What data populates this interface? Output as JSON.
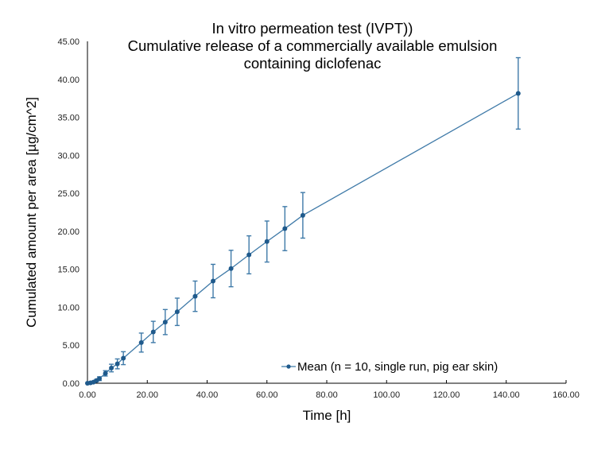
{
  "chart_data": {
    "type": "line",
    "title": [
      "In vitro permeation test (IVPT))",
      "Cumulative release of a commercially available emulsion",
      "containing diclofenac"
    ],
    "xlabel": "Time [h]",
    "ylabel": "Cumulated amount per area [µg/cm^2]",
    "xlim": [
      0,
      160
    ],
    "ylim": [
      0,
      45
    ],
    "x_ticks": [
      "0.00",
      "20.00",
      "40.00",
      "60.00",
      "80.00",
      "100.00",
      "120.00",
      "140.00",
      "160.00"
    ],
    "x_tick_values": [
      0,
      20,
      40,
      60,
      80,
      100,
      120,
      140,
      160
    ],
    "y_ticks": [
      "0.00",
      "5.00",
      "10.00",
      "15.00",
      "20.00",
      "25.00",
      "30.00",
      "35.00",
      "40.00",
      "45.00"
    ],
    "y_tick_values": [
      0,
      5,
      10,
      15,
      20,
      25,
      30,
      35,
      40,
      45
    ],
    "grid": false,
    "legend_position": "bottom-right",
    "series": [
      {
        "name": "Mean (n = 10, single run, pig ear skin)",
        "color": "#1f5a8c",
        "line_color": "#3f7aa8",
        "x": [
          0,
          1,
          2,
          3,
          4,
          6,
          8,
          10,
          12,
          18,
          22,
          26,
          30,
          36,
          42,
          48,
          54,
          60,
          66,
          72,
          144
        ],
        "y": [
          0.0,
          0.05,
          0.15,
          0.35,
          0.6,
          1.3,
          2.0,
          2.55,
          3.3,
          5.35,
          6.75,
          8.05,
          9.4,
          11.45,
          13.45,
          15.1,
          16.9,
          18.65,
          20.35,
          22.1,
          38.15
        ],
        "error": [
          0.0,
          0.03,
          0.08,
          0.15,
          0.25,
          0.35,
          0.5,
          0.65,
          0.85,
          1.25,
          1.4,
          1.65,
          1.8,
          2.0,
          2.2,
          2.4,
          2.5,
          2.7,
          2.9,
          3.0,
          4.7
        ]
      }
    ]
  }
}
